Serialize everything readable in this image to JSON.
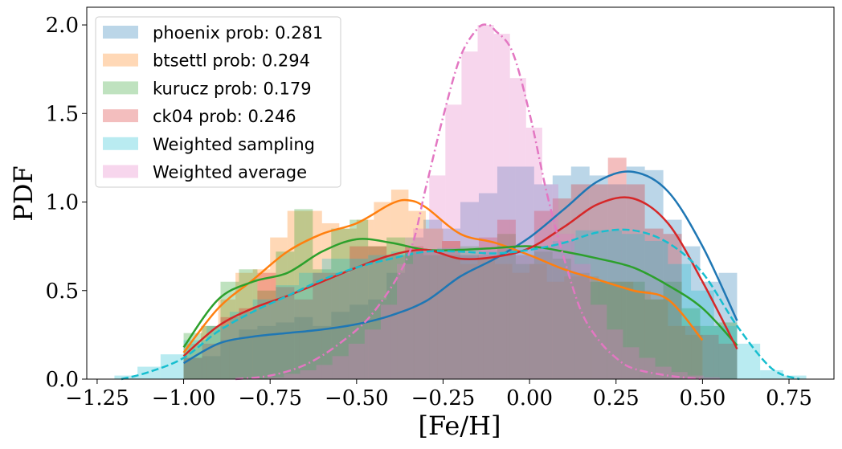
{
  "chart_data": {
    "type": "histogram-kde",
    "xlabel": "[Fe/H]",
    "ylabel": "PDF",
    "xlim": [
      -1.28,
      0.88
    ],
    "ylim": [
      0,
      2.1
    ],
    "x_ticks": [
      -1.25,
      -1.0,
      -0.75,
      -0.5,
      -0.25,
      0.0,
      0.25,
      0.5,
      0.75
    ],
    "x_tick_labels": [
      "−1.25",
      "−1.00",
      "−0.75",
      "−0.50",
      "−0.25",
      "0.00",
      "0.25",
      "0.50",
      "0.75"
    ],
    "y_ticks": [
      0.0,
      0.5,
      1.0,
      1.5,
      2.0
    ],
    "y_tick_labels": [
      "0.0",
      "0.5",
      "1.0",
      "1.5",
      "2.0"
    ],
    "grid": false,
    "legend_position": "top-left",
    "legend": [
      {
        "label": "phoenix prob: 0.281",
        "color": "#1f77b4"
      },
      {
        "label": "btsettl prob: 0.294",
        "color": "#ff7f0e"
      },
      {
        "label": "kurucz prob: 0.179",
        "color": "#2ca02c"
      },
      {
        "label": "ck04 prob: 0.246",
        "color": "#d62728"
      },
      {
        "label": "Weighted sampling",
        "color": "#17becf"
      },
      {
        "label": "Weighted average",
        "color": "#e377c2"
      }
    ],
    "series": [
      {
        "name": "phoenix prob: 0.281",
        "color": "#1f77b4",
        "bin_range": [
          -1.0,
          0.6
        ],
        "hist": [
          0.12,
          0.13,
          0.22,
          0.28,
          0.3,
          0.32,
          0.35,
          0.3,
          0.38,
          0.42,
          0.45,
          0.6,
          0.8,
          0.9,
          0.85,
          1.0,
          1.05,
          1.2,
          1.2,
          1.1,
          1.15,
          1.2,
          1.15,
          1.1,
          1.2,
          1.18,
          0.9,
          0.75,
          0.55,
          0.6
        ],
        "kde_x": [
          -1.0,
          -0.9,
          -0.8,
          -0.7,
          -0.6,
          -0.5,
          -0.4,
          -0.3,
          -0.2,
          -0.1,
          0.0,
          0.1,
          0.2,
          0.3,
          0.4,
          0.5,
          0.6
        ],
        "kde_y": [
          0.09,
          0.2,
          0.24,
          0.26,
          0.28,
          0.31,
          0.36,
          0.44,
          0.58,
          0.68,
          0.8,
          0.96,
          1.12,
          1.17,
          1.06,
          0.75,
          0.33
        ],
        "kde_style": "solid"
      },
      {
        "name": "btsettl prob: 0.294",
        "color": "#ff7f0e",
        "bin_range": [
          -1.0,
          0.5
        ],
        "hist": [
          0.2,
          0.3,
          0.45,
          0.6,
          0.62,
          0.8,
          0.95,
          0.95,
          0.88,
          0.85,
          0.9,
          1.0,
          1.07,
          0.95,
          0.85,
          0.78,
          0.65,
          0.7,
          0.65,
          0.6,
          0.65,
          0.55,
          0.58,
          0.58,
          0.55,
          0.55,
          0.5,
          0.45,
          0.3,
          0.25
        ],
        "kde_x": [
          -1.0,
          -0.9,
          -0.8,
          -0.7,
          -0.6,
          -0.5,
          -0.4,
          -0.35,
          -0.3,
          -0.2,
          -0.1,
          0.0,
          0.1,
          0.2,
          0.3,
          0.4,
          0.5
        ],
        "kde_y": [
          0.15,
          0.4,
          0.56,
          0.72,
          0.82,
          0.88,
          0.99,
          1.01,
          0.97,
          0.82,
          0.77,
          0.7,
          0.62,
          0.56,
          0.5,
          0.45,
          0.22
        ],
        "kde_style": "solid"
      },
      {
        "name": "kurucz prob: 0.179",
        "color": "#2ca02c",
        "bin_range": [
          -1.0,
          0.6
        ],
        "hist": [
          0.26,
          0.3,
          0.55,
          0.62,
          0.5,
          0.72,
          0.96,
          0.62,
          0.85,
          0.9,
          0.75,
          0.8,
          0.72,
          0.7,
          0.7,
          0.75,
          0.68,
          0.82,
          0.65,
          0.72,
          0.68,
          0.6,
          0.55,
          0.55,
          0.55,
          0.45,
          0.55,
          0.4,
          0.3,
          0.32
        ],
        "kde_x": [
          -1.0,
          -0.9,
          -0.8,
          -0.7,
          -0.6,
          -0.5,
          -0.4,
          -0.3,
          -0.2,
          -0.1,
          0.0,
          0.1,
          0.2,
          0.3,
          0.4,
          0.5,
          0.6
        ],
        "kde_y": [
          0.18,
          0.45,
          0.55,
          0.6,
          0.72,
          0.79,
          0.77,
          0.73,
          0.73,
          0.74,
          0.75,
          0.72,
          0.68,
          0.63,
          0.53,
          0.4,
          0.19
        ],
        "kde_style": "solid"
      },
      {
        "name": "ck04 prob: 0.246",
        "color": "#d62728",
        "bin_range": [
          -1.0,
          0.6
        ],
        "hist": [
          0.12,
          0.2,
          0.35,
          0.4,
          0.6,
          0.52,
          0.45,
          0.6,
          0.6,
          0.75,
          0.75,
          0.7,
          0.75,
          0.72,
          0.78,
          0.7,
          0.8,
          0.9,
          0.7,
          0.95,
          1.02,
          1.1,
          1.1,
          1.25,
          1.1,
          0.85,
          0.82,
          0.3,
          0.25,
          0.2
        ],
        "kde_x": [
          -1.0,
          -0.9,
          -0.8,
          -0.7,
          -0.6,
          -0.5,
          -0.4,
          -0.3,
          -0.2,
          -0.1,
          0.0,
          0.1,
          0.2,
          0.3,
          0.4,
          0.5,
          0.6
        ],
        "kde_y": [
          0.13,
          0.3,
          0.4,
          0.47,
          0.55,
          0.63,
          0.7,
          0.73,
          0.68,
          0.69,
          0.74,
          0.86,
          0.99,
          1.02,
          0.88,
          0.55,
          0.17
        ],
        "kde_style": "solid"
      },
      {
        "name": "Weighted sampling",
        "color": "#17becf",
        "bin_range": [
          -1.2,
          0.8
        ],
        "hist": [
          0.02,
          0.07,
          0.14,
          0.22,
          0.3,
          0.38,
          0.45,
          0.53,
          0.6,
          0.68,
          0.68,
          0.7,
          0.72,
          0.72,
          0.74,
          0.7,
          0.72,
          0.74,
          0.75,
          0.78,
          0.84,
          0.84,
          0.82,
          0.78,
          0.65,
          0.5,
          0.3,
          0.2,
          0.05,
          0.02
        ],
        "kde_x": [
          -1.18,
          -1.1,
          -1.0,
          -0.9,
          -0.8,
          -0.7,
          -0.6,
          -0.5,
          -0.4,
          -0.3,
          -0.2,
          -0.1,
          0.0,
          0.1,
          0.2,
          0.3,
          0.4,
          0.5,
          0.6,
          0.7,
          0.78
        ],
        "kde_y": [
          0.0,
          0.04,
          0.12,
          0.27,
          0.38,
          0.47,
          0.56,
          0.63,
          0.68,
          0.72,
          0.72,
          0.71,
          0.73,
          0.77,
          0.83,
          0.84,
          0.77,
          0.6,
          0.3,
          0.06,
          0.0
        ],
        "kde_style": "dashed"
      },
      {
        "name": "Weighted average",
        "color": "#e377c2",
        "bin_range": [
          -0.85,
          0.55
        ],
        "hist": [
          0.0,
          0.0,
          0.01,
          0.03,
          0.05,
          0.08,
          0.13,
          0.2,
          0.28,
          0.42,
          0.65,
          0.85,
          1.15,
          1.55,
          1.85,
          2.0,
          1.95,
          1.7,
          1.42,
          1.1,
          0.82,
          0.65,
          0.42,
          0.28,
          0.18,
          0.12,
          0.07,
          0.04,
          0.02,
          0.01
        ],
        "kde_x": [
          -0.85,
          -0.75,
          -0.65,
          -0.55,
          -0.45,
          -0.35,
          -0.3,
          -0.25,
          -0.2,
          -0.15,
          -0.12,
          -0.1,
          -0.05,
          0.0,
          0.05,
          0.1,
          0.15,
          0.2,
          0.25,
          0.3,
          0.4,
          0.5
        ],
        "kde_y": [
          0.0,
          0.02,
          0.08,
          0.2,
          0.38,
          0.7,
          1.08,
          1.48,
          1.82,
          1.98,
          2.0,
          1.97,
          1.85,
          1.5,
          1.05,
          0.68,
          0.38,
          0.22,
          0.12,
          0.06,
          0.02,
          0.0
        ],
        "kde_style": "dashdot"
      }
    ]
  }
}
